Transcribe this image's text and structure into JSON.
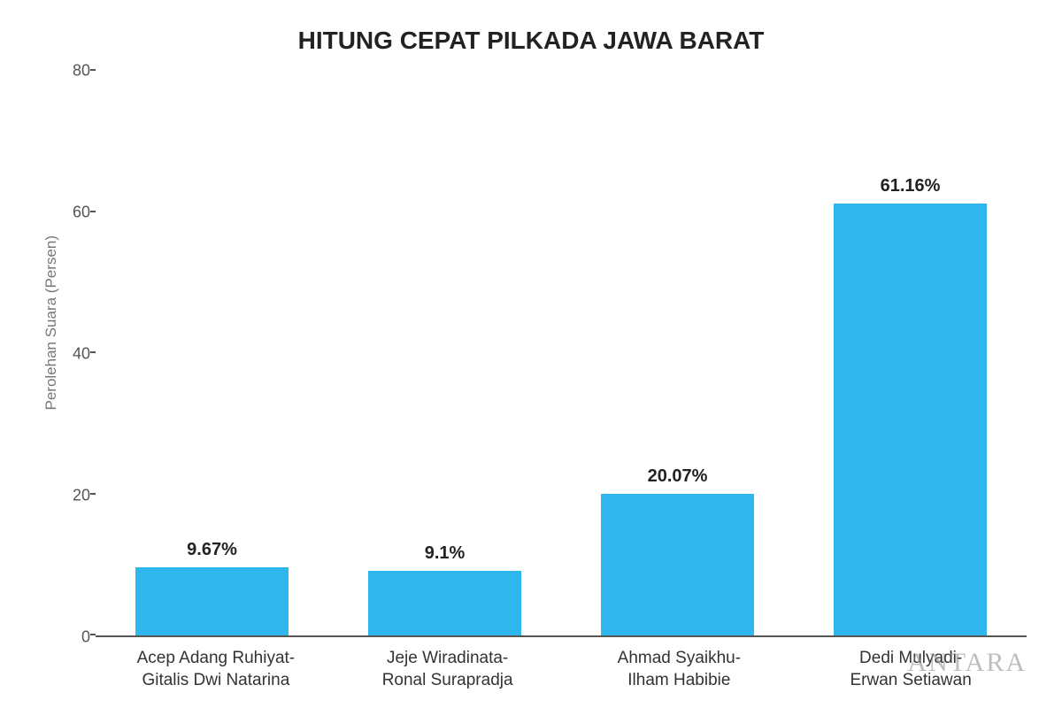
{
  "chart": {
    "type": "bar",
    "title": "HITUNG CEPAT PILKADA JAWA BARAT",
    "title_fontsize": 28,
    "ylabel": "Perolehan Suara (Persen)",
    "ylabel_fontsize": 17,
    "ylabel_color": "#777777",
    "ylim": [
      0,
      80
    ],
    "ytick_step": 20,
    "yticks": [
      0,
      20,
      40,
      60,
      80
    ],
    "categories": [
      "Acep Adang Ruhiyat-Gitalis Dwi Natarina",
      "Jeje Wiradinata-Ronal Surapradja",
      "Ahmad Syaikhu-Ilham Habibie",
      "Dedi Mulyadi-Erwan Setiawan"
    ],
    "values": [
      9.67,
      9.1,
      20.07,
      61.16
    ],
    "value_labels": [
      "9.67%",
      "9.1%",
      "20.07%",
      "61.16%"
    ],
    "bar_color": "#2eb6ed",
    "bar_width": 0.66,
    "value_label_fontsize": 20,
    "value_label_color": "#222222",
    "xlabel_fontsize": 19,
    "xlabel_color": "#333333",
    "ytick_fontsize": 18,
    "ytick_color": "#555555",
    "axis_color": "#555555",
    "background_color": "#ffffff"
  },
  "watermark": {
    "text": "ANTARA",
    "color": "#888888",
    "opacity": 0.55,
    "fontsize": 30
  }
}
